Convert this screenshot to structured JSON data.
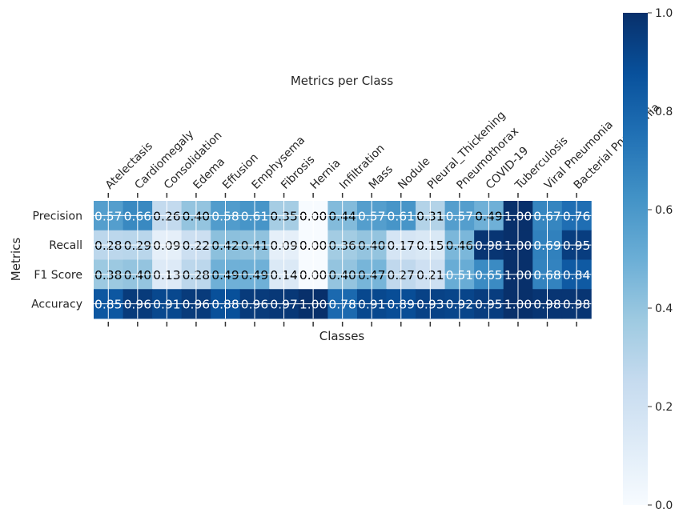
{
  "chart_data": {
    "type": "heatmap",
    "title": "Metrics per Class",
    "xlabel": "Classes",
    "ylabel": "Metrics",
    "rows": [
      "Precision",
      "Recall",
      "F1 Score",
      "Accuracy"
    ],
    "columns": [
      "Atelectasis",
      "Cardiomegaly",
      "Consolidation",
      "Edema",
      "Effusion",
      "Emphysema",
      "Fibrosis",
      "Hernia",
      "Infiltration",
      "Mass",
      "Nodule",
      "Pleural_Thickening",
      "Pneumothorax",
      "COVID-19",
      "Tuberculosis",
      "Viral Pneumonia",
      "Bacterial Pneumonia"
    ],
    "values": [
      [
        0.57,
        0.66,
        0.26,
        0.4,
        0.58,
        0.61,
        0.35,
        0.0,
        0.44,
        0.57,
        0.61,
        0.31,
        0.57,
        0.49,
        1.0,
        0.67,
        0.76
      ],
      [
        0.28,
        0.29,
        0.09,
        0.22,
        0.42,
        0.41,
        0.09,
        0.0,
        0.36,
        0.4,
        0.17,
        0.15,
        0.46,
        0.98,
        1.0,
        0.69,
        0.95
      ],
      [
        0.38,
        0.4,
        0.13,
        0.28,
        0.49,
        0.49,
        0.14,
        0.0,
        0.4,
        0.47,
        0.27,
        0.21,
        0.51,
        0.65,
        1.0,
        0.68,
        0.84
      ],
      [
        0.85,
        0.96,
        0.91,
        0.96,
        0.88,
        0.96,
        0.97,
        1.0,
        0.78,
        0.91,
        0.89,
        0.93,
        0.92,
        0.95,
        1.0,
        0.98,
        0.98
      ]
    ],
    "colormap": "Blues",
    "value_range": [
      0.0,
      1.0
    ],
    "colorbar_ticks": [
      "0.0",
      "0.2",
      "0.4",
      "0.6",
      "0.8",
      "1.0"
    ],
    "colorbar_position": "right",
    "grid": true
  }
}
